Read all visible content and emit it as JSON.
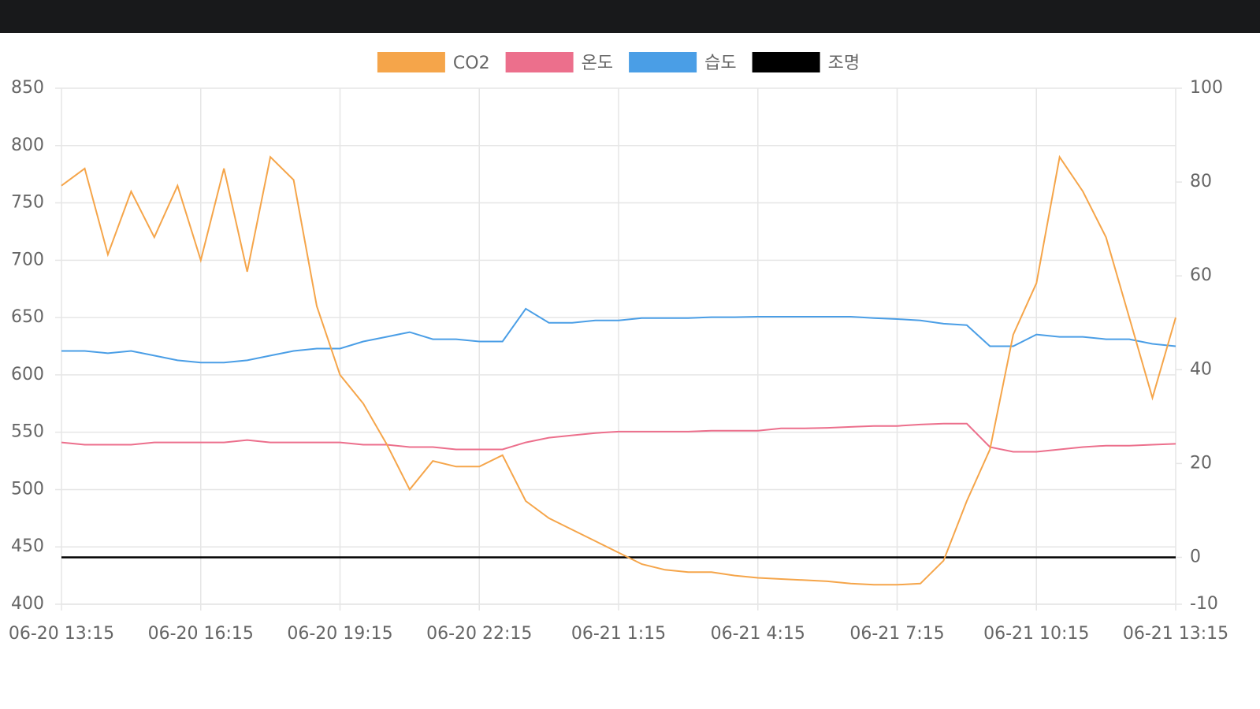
{
  "chart_data": {
    "type": "line",
    "categories": [
      "06-20 13:15",
      null,
      null,
      null,
      null,
      null,
      "06-20 16:15",
      null,
      null,
      null,
      null,
      null,
      "06-20 19:15",
      null,
      null,
      null,
      null,
      null,
      "06-20 22:15",
      null,
      null,
      null,
      null,
      null,
      "06-21 1:15",
      null,
      null,
      null,
      null,
      null,
      "06-21 4:15",
      null,
      null,
      null,
      null,
      null,
      "06-21 7:15",
      null,
      null,
      null,
      null,
      null,
      "06-21 10:15",
      null,
      null,
      null,
      null,
      null,
      "06-21 13:15"
    ],
    "series": [
      {
        "name": "CO2",
        "color": "#f5a54a",
        "values": [
          765,
          780,
          705,
          760,
          720,
          765,
          700,
          780,
          690,
          790,
          770,
          660,
          600,
          575,
          540,
          500,
          525,
          520,
          520,
          530,
          490,
          475,
          465,
          455,
          445,
          435,
          430,
          428,
          428,
          425,
          423,
          422,
          421,
          420,
          418,
          417,
          417,
          418,
          438,
          490,
          535,
          635,
          680,
          790,
          760,
          720,
          650,
          580,
          650
        ]
      },
      {
        "name": "온도",
        "color": "#ec6f8c",
        "axis": "y2",
        "values": [
          24.5,
          24,
          24,
          24,
          24.5,
          24.5,
          24.5,
          24.5,
          25,
          24.5,
          24.5,
          24.5,
          24.5,
          24,
          24,
          23.5,
          23.5,
          23,
          23,
          23,
          24.5,
          25.5,
          26,
          26.5,
          26.8,
          26.8,
          26.8,
          26.8,
          27,
          27,
          27,
          27.5,
          27.5,
          27.6,
          27.8,
          28,
          28,
          28.3,
          28.5,
          28.5,
          23.5,
          22.5,
          22.5,
          23,
          23.5,
          23.8,
          23.8,
          24,
          24.2
        ]
      },
      {
        "name": "습도",
        "color": "#4a9ee6",
        "axis": "y2",
        "values": [
          44,
          44,
          43.5,
          44,
          43,
          42,
          41.5,
          41.5,
          42,
          43,
          44,
          44.5,
          44.5,
          46,
          47,
          48,
          46.5,
          46.5,
          46,
          46,
          53,
          50,
          50,
          50.5,
          50.5,
          51,
          51,
          51,
          51.2,
          51.2,
          51.3,
          51.3,
          51.3,
          51.3,
          51.3,
          51,
          50.8,
          50.5,
          49.8,
          49.5,
          45,
          45,
          47.5,
          47,
          47,
          46.5,
          46.5,
          45.5,
          45
        ]
      },
      {
        "name": "조명",
        "color": "#000000",
        "axis": "y2",
        "values": [
          0,
          0,
          0,
          0,
          0,
          0,
          0,
          0,
          0,
          0,
          0,
          0,
          0,
          0,
          0,
          0,
          0,
          0,
          0,
          0,
          0,
          0,
          0,
          0,
          0,
          0,
          0,
          0,
          0,
          0,
          0,
          0,
          0,
          0,
          0,
          0,
          0,
          0,
          0,
          0,
          0,
          0,
          0,
          0,
          0,
          0,
          0,
          0,
          0
        ]
      }
    ],
    "ylim": [
      400,
      850
    ],
    "yticks": [
      400,
      450,
      500,
      550,
      600,
      650,
      700,
      750,
      800,
      850
    ],
    "y2lim": [
      -10,
      100
    ],
    "y2ticks": [
      -10,
      0,
      20,
      40,
      60,
      80,
      100
    ],
    "grid": true,
    "legend": "top"
  }
}
